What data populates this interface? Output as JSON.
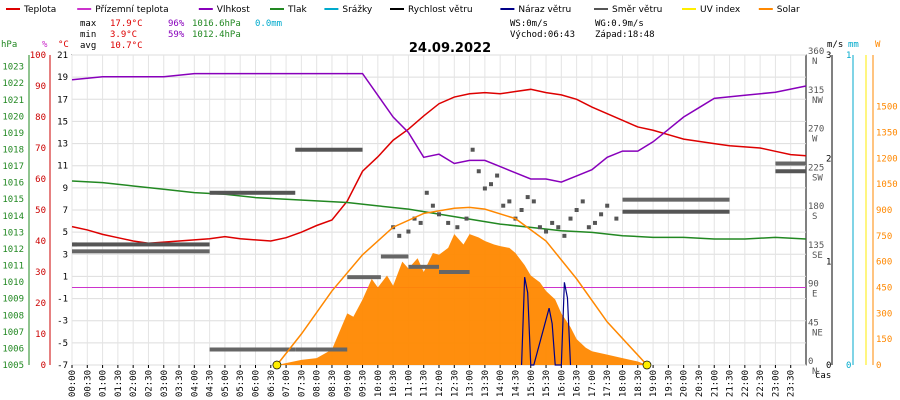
{
  "legend": [
    {
      "name": "Teplota",
      "color": "#dd0000"
    },
    {
      "name": "Přízemní teplota",
      "color": "#cc33cc"
    },
    {
      "name": "Vlhkost",
      "color": "#8800bb"
    },
    {
      "name": "Tlak",
      "color": "#228822"
    },
    {
      "name": "Srážky",
      "color": "#00aacc"
    },
    {
      "name": "Rychlost větru",
      "color": "#000000"
    },
    {
      "name": "Náraz větru",
      "color": "#000088"
    },
    {
      "name": "Směr větru",
      "color": "#555555"
    },
    {
      "name": "UV index",
      "color": "#ffee00"
    },
    {
      "name": "Solar",
      "color": "#ff8800"
    }
  ],
  "stats": {
    "max_label": "max",
    "max_temp": "17.9°C",
    "max_hum": "96%",
    "max_press": "1016.6hPa",
    "max_rain": "0.0mm",
    "min_label": "min",
    "min_temp": "3.9°C",
    "min_hum": "59%",
    "min_press": "1012.4hPa",
    "avg_label": "avg",
    "avg_temp": "10.7°C",
    "ws": "WS:0m/s",
    "wg": "WG:0.9m/s",
    "sunrise": "Východ:06:43",
    "sunset": "Západ:18:48"
  },
  "chart_data": {
    "type": "line",
    "title": "24.09.2022",
    "x_unit": "čas",
    "x_ticks": [
      "00:00",
      "00:30",
      "01:00",
      "01:30",
      "02:00",
      "02:30",
      "03:00",
      "03:30",
      "04:00",
      "04:30",
      "05:00",
      "05:30",
      "06:00",
      "06:30",
      "07:00",
      "07:30",
      "08:00",
      "08:30",
      "09:00",
      "09:30",
      "10:00",
      "10:30",
      "11:00",
      "11:30",
      "12:00",
      "12:30",
      "13:00",
      "13:30",
      "14:00",
      "14:30",
      "15:00",
      "15:30",
      "16:00",
      "16:30",
      "17:00",
      "17:30",
      "18:00",
      "18:30",
      "19:00",
      "19:30",
      "20:00",
      "20:30",
      "21:00",
      "21:30",
      "22:00",
      "22:30",
      "23:00",
      "23:30"
    ],
    "axes": {
      "pressure": {
        "unit": "hPa",
        "ticks": [
          "1023",
          "1022",
          "1021",
          "1020",
          "1019",
          "1018",
          "1017",
          "1016",
          "1015",
          "1014",
          "1013",
          "1012",
          "1011",
          "1010",
          "1009",
          "1008",
          "1007",
          "1006",
          "1005"
        ],
        "range": [
          1005,
          1023.7
        ]
      },
      "humidity": {
        "unit": "%",
        "ticks": [
          "100",
          "90",
          "80",
          "70",
          "60",
          "50",
          "40",
          "30",
          "20",
          "10",
          "0"
        ],
        "range": [
          0,
          100
        ]
      },
      "temperature": {
        "unit": "°C",
        "ticks": [
          "21",
          "19",
          "17",
          "15",
          "13",
          "11",
          "9",
          "7",
          "5",
          "3",
          "1",
          "-1",
          "-3",
          "-5",
          "-7"
        ],
        "range": [
          -7,
          21
        ]
      },
      "direction": {
        "ticks": [
          {
            "v": "360",
            "d": "N"
          },
          {
            "v": "315",
            "d": "NW"
          },
          {
            "v": "270",
            "d": "W"
          },
          {
            "v": "225",
            "d": "SW"
          },
          {
            "v": "180",
            "d": "S"
          },
          {
            "v": "135",
            "d": "SE"
          },
          {
            "v": "90",
            "d": "E"
          },
          {
            "v": "45",
            "d": "NE"
          },
          {
            "v": "0",
            "d": "N"
          }
        ],
        "range": [
          0,
          360
        ]
      },
      "wind": {
        "unit": "m/s",
        "ticks": [
          "3",
          "2",
          "1",
          "0"
        ],
        "range": [
          0,
          3
        ]
      },
      "rain": {
        "unit": "mm",
        "ticks": [
          "1",
          "0"
        ],
        "range": [
          0,
          1
        ]
      },
      "solar": {
        "unit": "W",
        "ticks": [
          "1500",
          "1350",
          "1200",
          "1050",
          "900",
          "750",
          "600",
          "450",
          "300",
          "150",
          "0"
        ],
        "range": [
          0,
          1800
        ]
      }
    },
    "series": [
      {
        "name": "Teplota",
        "axis": "temperature",
        "color": "#dd0000",
        "x": [
          0,
          0.5,
          1,
          1.5,
          2,
          2.5,
          3,
          3.5,
          4,
          4.5,
          5,
          5.5,
          6,
          6.5,
          7,
          7.5,
          8,
          8.5,
          9,
          9.5,
          10,
          10.5,
          11,
          11.5,
          12,
          12.5,
          13,
          13.5,
          14,
          14.5,
          15,
          15.5,
          16,
          16.5,
          17,
          17.5,
          18,
          18.5,
          19,
          19.5,
          20,
          20.5,
          21,
          21.5,
          22,
          22.5,
          23,
          23.5,
          24
        ],
        "y": [
          5.5,
          5.2,
          4.8,
          4.5,
          4.2,
          4.0,
          4.1,
          4.2,
          4.3,
          4.4,
          4.6,
          4.4,
          4.3,
          4.2,
          4.5,
          5.0,
          5.6,
          6.1,
          7.8,
          10.5,
          11.8,
          13.3,
          14.3,
          15.5,
          16.6,
          17.2,
          17.5,
          17.6,
          17.5,
          17.7,
          17.9,
          17.6,
          17.4,
          17.0,
          16.3,
          15.7,
          15.1,
          14.5,
          14.2,
          13.8,
          13.4,
          13.2,
          13.0,
          12.8,
          12.7,
          12.6,
          12.3,
          12.0,
          11.9
        ]
      },
      {
        "name": "Vlhkost",
        "axis": "humidity",
        "color": "#8800bb",
        "x": [
          0,
          1,
          2,
          3,
          4,
          5,
          6,
          7,
          8,
          9,
          9.5,
          10,
          10.5,
          11,
          11.5,
          12,
          12.5,
          13,
          13.5,
          14,
          14.5,
          15,
          15.5,
          16,
          16.5,
          17,
          17.5,
          18,
          18.5,
          19,
          19.5,
          20,
          20.5,
          21,
          22,
          23,
          23.5,
          24
        ],
        "y": [
          92,
          93,
          93,
          93,
          94,
          94,
          94,
          94,
          94,
          94,
          94,
          87,
          80,
          75,
          67,
          68,
          65,
          66,
          66,
          64,
          62,
          60,
          60,
          59,
          61,
          63,
          67,
          69,
          69,
          72,
          76,
          80,
          83,
          86,
          87,
          88,
          89,
          90
        ]
      },
      {
        "name": "Tlak",
        "axis": "pressure",
        "color": "#228822",
        "x": [
          0,
          1,
          2,
          3,
          4,
          5,
          6,
          7,
          8,
          9,
          10,
          11,
          12,
          13,
          14,
          15,
          16,
          17,
          18,
          19,
          20,
          21,
          22,
          23,
          24
        ],
        "y": [
          1016.1,
          1016.0,
          1015.8,
          1015.6,
          1015.4,
          1015.3,
          1015.1,
          1015.0,
          1014.9,
          1014.8,
          1014.6,
          1014.4,
          1014.1,
          1013.8,
          1013.5,
          1013.3,
          1013.1,
          1013.0,
          1012.8,
          1012.7,
          1012.7,
          1012.6,
          1012.6,
          1012.7,
          1012.6
        ]
      },
      {
        "name": "Směr větru",
        "axis": "direction",
        "color": "#555555",
        "type": "scatter",
        "segments": [
          [
            0,
            4.5,
            140
          ],
          [
            4.5,
            7.3,
            200
          ],
          [
            7.3,
            9.5,
            250
          ],
          [
            18,
            21.5,
            178
          ],
          [
            23,
            24,
            225
          ]
        ],
        "x": [
          0.1,
          10.5,
          10.7,
          11.0,
          11.2,
          11.4,
          11.6,
          11.8,
          12.0,
          12.3,
          12.6,
          12.9,
          13.1,
          13.3,
          13.5,
          13.7,
          13.9,
          14.1,
          14.3,
          14.5,
          14.7,
          14.9,
          15.1,
          15.3,
          15.5,
          15.7,
          15.9,
          16.1,
          16.3,
          16.5,
          16.7,
          16.9,
          17.1,
          17.3,
          17.5,
          17.8
        ],
        "y": [
          140,
          160,
          150,
          155,
          170,
          165,
          200,
          185,
          175,
          165,
          160,
          170,
          250,
          225,
          205,
          210,
          220,
          185,
          190,
          170,
          180,
          195,
          190,
          160,
          155,
          165,
          160,
          150,
          170,
          180,
          190,
          160,
          165,
          175,
          185,
          170
        ]
      },
      {
        "name": "Rychlost větru",
        "axis": "wind",
        "color": "#000000",
        "segments": [
          [
            0,
            4.5,
            1.1
          ],
          [
            4.5,
            7.3,
            0.15
          ],
          [
            7.3,
            9.0,
            0.15
          ],
          [
            9.0,
            10.1,
            0.85
          ],
          [
            10.1,
            11.0,
            1.05
          ],
          [
            11.0,
            12.0,
            0.95
          ],
          [
            12.0,
            13.0,
            0.9
          ],
          [
            18.0,
            21.5,
            1.6
          ],
          [
            23.0,
            24.0,
            1.95
          ]
        ]
      },
      {
        "name": "Náraz větru",
        "axis": "wind",
        "color": "#000088",
        "x": [
          14.7,
          14.8,
          14.9,
          15.0,
          15.1,
          15.6,
          15.7,
          15.8,
          16.0,
          16.1,
          16.2,
          16.3
        ],
        "y": [
          0,
          0.85,
          0.7,
          0,
          0,
          0.55,
          0.4,
          0,
          0,
          0.8,
          0.65,
          0
        ]
      },
      {
        "name": "Solar",
        "axis": "solar",
        "color": "#ff8800",
        "type": "area",
        "x": [
          6.7,
          7.5,
          8.0,
          8.5,
          9.0,
          9.2,
          9.5,
          9.8,
          10.0,
          10.3,
          10.5,
          10.8,
          11.0,
          11.3,
          11.5,
          11.8,
          12.0,
          12.3,
          12.5,
          12.8,
          13.0,
          13.3,
          13.5,
          13.8,
          14.0,
          14.3,
          14.5,
          14.8,
          15.0,
          15.3,
          15.5,
          15.8,
          16.0,
          16.3,
          16.5,
          16.8,
          17.0,
          17.5,
          18.0,
          18.5,
          18.8
        ],
        "y": [
          0,
          30,
          40,
          90,
          300,
          280,
          380,
          500,
          450,
          520,
          460,
          600,
          560,
          620,
          540,
          650,
          640,
          680,
          760,
          700,
          760,
          740,
          720,
          700,
          690,
          680,
          650,
          580,
          520,
          480,
          430,
          380,
          300,
          220,
          150,
          100,
          80,
          60,
          40,
          20,
          0
        ]
      },
      {
        "name": "Solar (theoretical)",
        "axis": "solar",
        "color": "#ff8800",
        "type": "curve",
        "x": [
          6.7,
          7.5,
          8.5,
          9.5,
          10.5,
          11.5,
          12.5,
          13.0,
          13.5,
          14.5,
          15.5,
          16.5,
          17.5,
          18.8
        ],
        "y": [
          0,
          180,
          430,
          640,
          800,
          880,
          910,
          915,
          905,
          850,
          720,
          500,
          250,
          0
        ]
      },
      {
        "name": "UV index",
        "axis": "solar",
        "color": "#ffee00",
        "type": "markers",
        "x": [
          6.7,
          18.8
        ],
        "y": [
          0,
          0
        ]
      }
    ]
  }
}
